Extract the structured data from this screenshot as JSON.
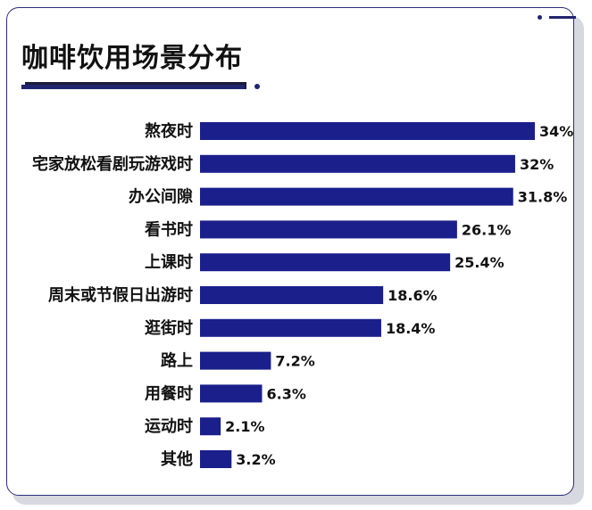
{
  "chart_data": {
    "type": "bar",
    "orientation": "horizontal",
    "title": "咖啡饮用场景分布",
    "categories": [
      "熬夜时",
      "宅家放松看剧玩游戏时",
      "办公间隙",
      "看书时",
      "上课时",
      "周末或节假日出游时",
      "逛街时",
      "路上",
      "用餐时",
      "运动时",
      "其他"
    ],
    "values": [
      34,
      32,
      31.8,
      26.1,
      25.4,
      18.6,
      18.4,
      7.2,
      6.3,
      2.1,
      3.2
    ],
    "value_labels": [
      "34%",
      "32%",
      "31.8%",
      "26.1%",
      "25.4%",
      "18.6%",
      "18.4%",
      "7.2%",
      "6.3%",
      "2.1%",
      "3.2%"
    ],
    "xlim": [
      0,
      34
    ],
    "bar_color": "#1a1f8c",
    "grid": false,
    "legend": "none"
  }
}
